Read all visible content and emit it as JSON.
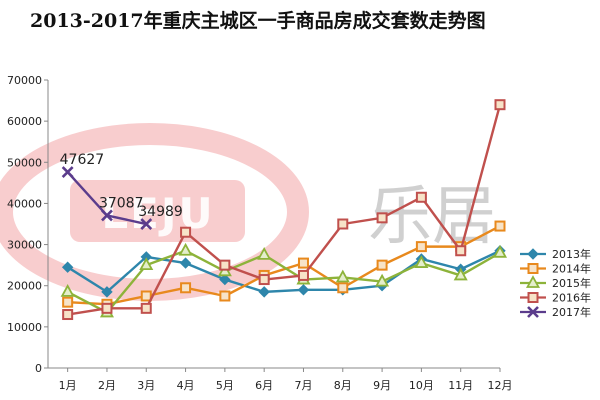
{
  "chart_data": {
    "type": "line",
    "title": "2013-2017年重庆主城区一手商品房成交套数走势图",
    "xlabel": "",
    "ylabel": "",
    "categories": [
      "1月",
      "2月",
      "3月",
      "4月",
      "5月",
      "6月",
      "7月",
      "8月",
      "9月",
      "10月",
      "11月",
      "12月"
    ],
    "ylim": [
      0,
      70000
    ],
    "yticks": [
      0,
      10000,
      20000,
      30000,
      40000,
      50000,
      60000,
      70000
    ],
    "grid": false,
    "legend_position": "right",
    "series": [
      {
        "name": "2013年",
        "color": "#2e86ab",
        "marker": "diamond",
        "values": [
          24500,
          18500,
          27000,
          25500,
          21500,
          18500,
          19000,
          19000,
          20000,
          26500,
          24000,
          28500
        ]
      },
      {
        "name": "2014年",
        "color": "#e8891d",
        "marker": "square",
        "values": [
          16000,
          15500,
          17500,
          19500,
          17500,
          22500,
          25500,
          19500,
          25000,
          29500,
          29500,
          34500
        ]
      },
      {
        "name": "2015年",
        "color": "#8db33a",
        "marker": "triangle",
        "values": [
          18500,
          13500,
          25000,
          28500,
          23500,
          27500,
          21500,
          22000,
          21000,
          25500,
          22500,
          28000
        ]
      },
      {
        "name": "2016年",
        "color": "#c0504d",
        "marker": "square",
        "values": [
          13000,
          14500,
          14500,
          33000,
          25000,
          21500,
          22500,
          35000,
          36500,
          41500,
          28500,
          64000
        ]
      },
      {
        "name": "2017年",
        "color": "#5b3c8c",
        "marker": "x",
        "values": [
          47627,
          37087,
          34989,
          null,
          null,
          null,
          null,
          null,
          null,
          null,
          null,
          null
        ]
      }
    ],
    "data_labels": [
      {
        "series": "2017年",
        "index": 0,
        "text": "47627"
      },
      {
        "series": "2017年",
        "index": 1,
        "text": "37087"
      },
      {
        "series": "2017年",
        "index": 2,
        "text": "34989"
      }
    ]
  },
  "watermark": {
    "text_latin": "LEJU",
    "text_cn": "乐居",
    "ring_color": "#e74c50",
    "cn_color": "#bdbdbd"
  }
}
